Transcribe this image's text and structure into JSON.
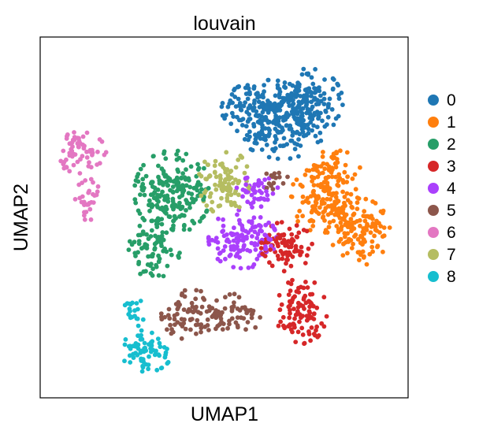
{
  "chart_data": {
    "type": "scatter",
    "title": "louvain",
    "xlabel": "UMAP1",
    "ylabel": "UMAP2",
    "xlim": [
      0,
      100
    ],
    "ylim": [
      0,
      100
    ],
    "grid": false,
    "legend_position": "right",
    "series": [
      {
        "name": "0",
        "color": "#1f77b4",
        "blobs": [
          {
            "cx": 62,
            "cy": 80,
            "rx": 11,
            "ry": 7,
            "n": 190
          },
          {
            "cx": 73,
            "cy": 82,
            "rx": 8,
            "ry": 8,
            "n": 140
          },
          {
            "cx": 66,
            "cy": 72,
            "rx": 9,
            "ry": 5,
            "n": 70
          }
        ]
      },
      {
        "name": "1",
        "color": "#ff7f0e",
        "blobs": [
          {
            "cx": 77,
            "cy": 55,
            "rx": 8,
            "ry": 8,
            "n": 150
          },
          {
            "cx": 87,
            "cy": 46,
            "rx": 7,
            "ry": 8,
            "n": 110
          },
          {
            "cx": 80,
            "cy": 64,
            "rx": 6,
            "ry": 4,
            "n": 45
          }
        ]
      },
      {
        "name": "2",
        "color": "#279e68",
        "blobs": [
          {
            "cx": 36,
            "cy": 57,
            "rx": 9,
            "ry": 10,
            "n": 210
          },
          {
            "cx": 31,
            "cy": 41,
            "rx": 6,
            "ry": 7,
            "n": 75
          }
        ]
      },
      {
        "name": "3",
        "color": "#d62728",
        "blobs": [
          {
            "cx": 71,
            "cy": 24,
            "rx": 6,
            "ry": 8,
            "n": 100
          },
          {
            "cx": 67,
            "cy": 42,
            "rx": 6,
            "ry": 6,
            "n": 80
          }
        ]
      },
      {
        "name": "4",
        "color": "#aa40fc",
        "blobs": [
          {
            "cx": 55,
            "cy": 44,
            "rx": 8,
            "ry": 7,
            "n": 130
          },
          {
            "cx": 59,
            "cy": 57,
            "rx": 5,
            "ry": 4,
            "n": 45
          }
        ]
      },
      {
        "name": "5",
        "color": "#8c564b",
        "blobs": [
          {
            "cx": 41,
            "cy": 23,
            "rx": 7,
            "ry": 6,
            "n": 75
          },
          {
            "cx": 53,
            "cy": 23,
            "rx": 6,
            "ry": 5,
            "n": 50
          },
          {
            "cx": 64,
            "cy": 60,
            "rx": 3,
            "ry": 3,
            "n": 15
          }
        ]
      },
      {
        "name": "6",
        "color": "#e377c2",
        "blobs": [
          {
            "cx": 11,
            "cy": 68,
            "rx": 6,
            "ry": 5,
            "n": 60
          },
          {
            "cx": 13,
            "cy": 55,
            "rx": 3,
            "ry": 5,
            "n": 30
          }
        ]
      },
      {
        "name": "7",
        "color": "#b5bd61",
        "blobs": [
          {
            "cx": 50,
            "cy": 60,
            "rx": 6,
            "ry": 8,
            "n": 95
          }
        ]
      },
      {
        "name": "8",
        "color": "#17becf",
        "blobs": [
          {
            "cx": 29,
            "cy": 13,
            "rx": 6,
            "ry": 5,
            "n": 70
          },
          {
            "cx": 25,
            "cy": 24,
            "rx": 3,
            "ry": 4,
            "n": 20
          }
        ]
      }
    ]
  }
}
